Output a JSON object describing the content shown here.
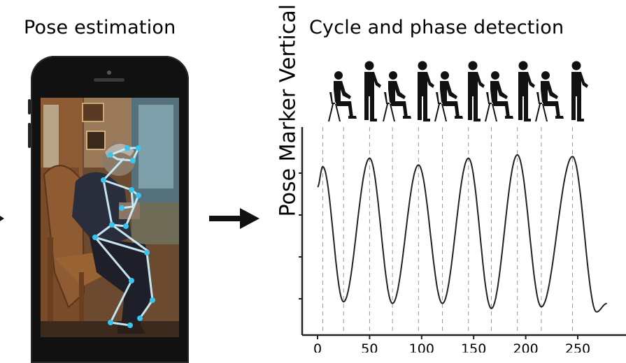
{
  "titles": {
    "left": "Pose estimation",
    "right": "Cycle and phase detection"
  },
  "chart_data": {
    "type": "line",
    "title": "Cycle and phase detection",
    "xlabel": "",
    "ylabel": "Pose Marker Vertical Position",
    "xlim": [
      -10,
      280
    ],
    "x_ticks": [
      "0",
      "50",
      "100",
      "150",
      "200",
      "250"
    ],
    "x_tick_values": [
      0,
      50,
      100,
      150,
      200,
      250
    ],
    "series": [
      {
        "values_note_only_extrema": true,
        "x": [
          0,
          5,
          25,
          50,
          72,
          97,
          120,
          145,
          167,
          192,
          215,
          245,
          268,
          278
        ],
        "y": [
          0.72,
          0.84,
          0.04,
          0.89,
          0.03,
          0.85,
          0.03,
          0.89,
          0.0,
          0.91,
          0.01,
          0.9,
          -0.02,
          0.03
        ]
      }
    ],
    "phase_lines_x": [
      5,
      25,
      50,
      72,
      97,
      120,
      145,
      167,
      192,
      215,
      245
    ],
    "grid": false
  },
  "pose_icons": [
    "sitting-person-icon",
    "standing-person-icon",
    "sitting-person-icon",
    "standing-person-icon",
    "sitting-person-icon",
    "standing-person-icon",
    "sitting-person-icon",
    "standing-person-icon",
    "sitting-person-icon",
    "standing-person-icon"
  ]
}
